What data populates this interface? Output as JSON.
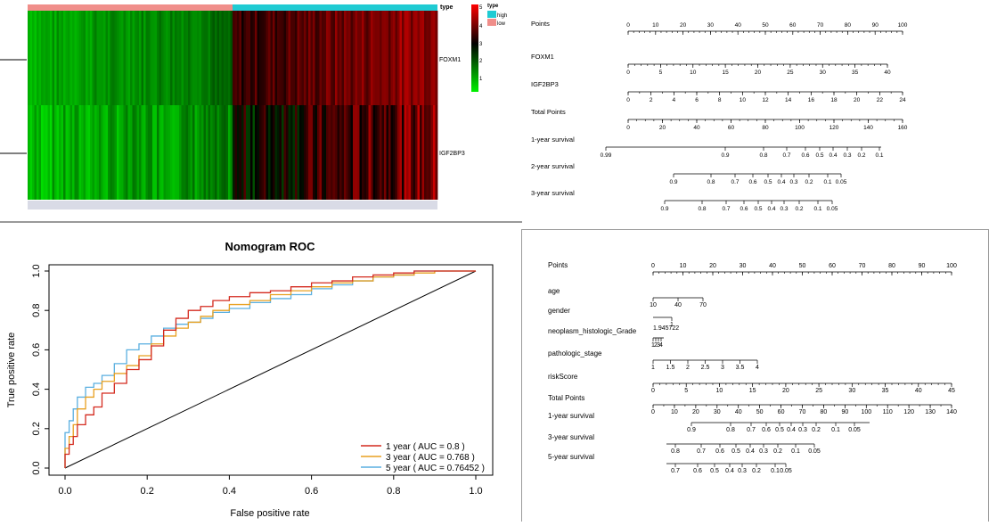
{
  "heatmap": {
    "annotation_label": "type",
    "legend_title": "type",
    "legend_items": [
      {
        "label": "high",
        "color": "#1FCBD3"
      },
      {
        "label": "low",
        "color": "#F08E8A"
      }
    ],
    "scale_ticks": [
      "5",
      "4",
      "3",
      "2",
      "1"
    ],
    "rows": [
      "FOXM1",
      "IGF2BP3"
    ],
    "colors": {
      "low": "#00F000",
      "mid": "#000000",
      "high": "#FF0000"
    }
  },
  "nomogram1": {
    "rows": [
      {
        "label": "Points",
        "ticks": [
          "0",
          "10",
          "20",
          "30",
          "40",
          "50",
          "60",
          "70",
          "80",
          "90",
          "100"
        ]
      },
      {
        "label": "FOXM1",
        "ticks": [
          "0",
          "5",
          "10",
          "15",
          "20",
          "25",
          "30",
          "35",
          "40"
        ]
      },
      {
        "label": "IGF2BP3",
        "ticks": [
          "0",
          "2",
          "4",
          "6",
          "8",
          "10",
          "12",
          "14",
          "16",
          "18",
          "20",
          "22",
          "24"
        ]
      },
      {
        "label": "Total Points",
        "ticks": [
          "0",
          "20",
          "40",
          "60",
          "80",
          "100",
          "120",
          "140",
          "160"
        ]
      },
      {
        "label": "1-year survival",
        "ticks": [
          "0.99",
          "0.9",
          "0.8",
          "0.7",
          "0.6",
          "0.5",
          "0.4",
          "0.3",
          "0.2",
          "0.1"
        ]
      },
      {
        "label": "2-year survival",
        "ticks": [
          "0.9",
          "0.8",
          "0.7",
          "0.6",
          "0.5",
          "0.4",
          "0.3",
          "0.2",
          "0.1",
          "0.05"
        ]
      },
      {
        "label": "3-year survival",
        "ticks": [
          "0.9",
          "0.8",
          "0.7",
          "0.6",
          "0.5",
          "0.4",
          "0.3",
          "0.2",
          "0.1",
          "0.05"
        ]
      }
    ]
  },
  "chart_data": {
    "type": "line",
    "title": "Nomogram ROC",
    "xlabel": "False positive rate",
    "ylabel": "True positive rate",
    "xlim": [
      0,
      1
    ],
    "ylim": [
      0,
      1
    ],
    "xticks": [
      "0.0",
      "0.2",
      "0.4",
      "0.6",
      "0.8",
      "1.0"
    ],
    "yticks": [
      "0.0",
      "0.2",
      "0.4",
      "0.6",
      "0.8",
      "1.0"
    ],
    "legend_position": "bottom-right",
    "series": [
      {
        "name": "1 year ( AUC = 0.8 )",
        "color": "#D42A1E",
        "x": [
          0,
          0.01,
          0.02,
          0.03,
          0.05,
          0.07,
          0.09,
          0.12,
          0.15,
          0.18,
          0.21,
          0.24,
          0.27,
          0.3,
          0.33,
          0.36,
          0.4,
          0.45,
          0.5,
          0.55,
          0.6,
          0.65,
          0.7,
          0.75,
          0.8,
          0.85,
          0.9,
          0.95,
          1.0
        ],
        "y": [
          0,
          0.07,
          0.12,
          0.16,
          0.22,
          0.27,
          0.31,
          0.38,
          0.43,
          0.5,
          0.55,
          0.62,
          0.7,
          0.76,
          0.8,
          0.82,
          0.85,
          0.87,
          0.89,
          0.9,
          0.92,
          0.94,
          0.95,
          0.97,
          0.98,
          0.99,
          1.0,
          1.0,
          1.0
        ]
      },
      {
        "name": "3 year ( AUC = 0.768 )",
        "color": "#E8A020",
        "x": [
          0,
          0.01,
          0.02,
          0.03,
          0.05,
          0.07,
          0.09,
          0.12,
          0.15,
          0.18,
          0.21,
          0.24,
          0.27,
          0.3,
          0.33,
          0.36,
          0.4,
          0.45,
          0.5,
          0.55,
          0.6,
          0.65,
          0.7,
          0.75,
          0.8,
          0.85,
          0.9,
          0.95,
          1.0
        ],
        "y": [
          0,
          0.1,
          0.16,
          0.22,
          0.3,
          0.36,
          0.4,
          0.44,
          0.48,
          0.52,
          0.57,
          0.63,
          0.67,
          0.71,
          0.74,
          0.77,
          0.8,
          0.83,
          0.85,
          0.88,
          0.9,
          0.92,
          0.94,
          0.95,
          0.97,
          0.98,
          0.99,
          1.0,
          1.0
        ]
      },
      {
        "name": "5 year ( AUC = 0.76452 )",
        "color": "#5AAFE0",
        "x": [
          0,
          0.01,
          0.02,
          0.03,
          0.05,
          0.07,
          0.09,
          0.12,
          0.15,
          0.18,
          0.21,
          0.24,
          0.27,
          0.3,
          0.33,
          0.36,
          0.4,
          0.45,
          0.5,
          0.55,
          0.6,
          0.65,
          0.7,
          0.75,
          0.8,
          0.85,
          0.9,
          0.95,
          1.0
        ],
        "y": [
          0,
          0.18,
          0.24,
          0.3,
          0.36,
          0.41,
          0.43,
          0.47,
          0.53,
          0.6,
          0.63,
          0.67,
          0.71,
          0.73,
          0.74,
          0.76,
          0.79,
          0.81,
          0.84,
          0.86,
          0.88,
          0.91,
          0.93,
          0.95,
          0.97,
          0.98,
          1.0,
          1.0,
          1.0
        ]
      }
    ]
  },
  "nomogram2": {
    "rows": [
      {
        "label": "Points",
        "ticks": [
          "0",
          "10",
          "20",
          "30",
          "40",
          "50",
          "60",
          "70",
          "80",
          "90",
          "100"
        ]
      },
      {
        "label": "age",
        "ticks": [
          "10",
          "40",
          "70"
        ]
      },
      {
        "label": "gender",
        "ticks": [
          "1"
        ]
      },
      {
        "label": "neoplasm_histologic_Grade",
        "ticks": [
          "1",
          "2",
          "3",
          "4"
        ]
      },
      {
        "label": "pathologic_stage",
        "ticks": [
          "1",
          "1.5",
          "2",
          "2.5",
          "3",
          "3.5",
          "4"
        ]
      },
      {
        "label": "riskScore",
        "ticks": [
          "0",
          "5",
          "10",
          "15",
          "20",
          "25",
          "30",
          "35",
          "40",
          "45"
        ]
      },
      {
        "label": "Total Points",
        "ticks": [
          "0",
          "10",
          "20",
          "30",
          "40",
          "50",
          "60",
          "70",
          "80",
          "90",
          "100",
          "110",
          "120",
          "130",
          "140"
        ]
      },
      {
        "label": "1-year survival",
        "ticks": [
          "0.9",
          "0.8",
          "0.7",
          "0.6",
          "0.5",
          "0.4",
          "0.3",
          "0.2",
          "0.1",
          "0.05"
        ]
      },
      {
        "label": "3-year survival",
        "ticks": [
          "0.8",
          "0.7",
          "0.6",
          "0.5",
          "0.4",
          "0.3",
          "0.2",
          "0.1",
          "0.05"
        ]
      },
      {
        "label": "5-year survival",
        "ticks": [
          "0.7",
          "0.6",
          "0.5",
          "0.4",
          "0.3",
          "0.2",
          "0.1",
          "0.05"
        ]
      }
    ],
    "grade_extra_label": "1.945722"
  }
}
